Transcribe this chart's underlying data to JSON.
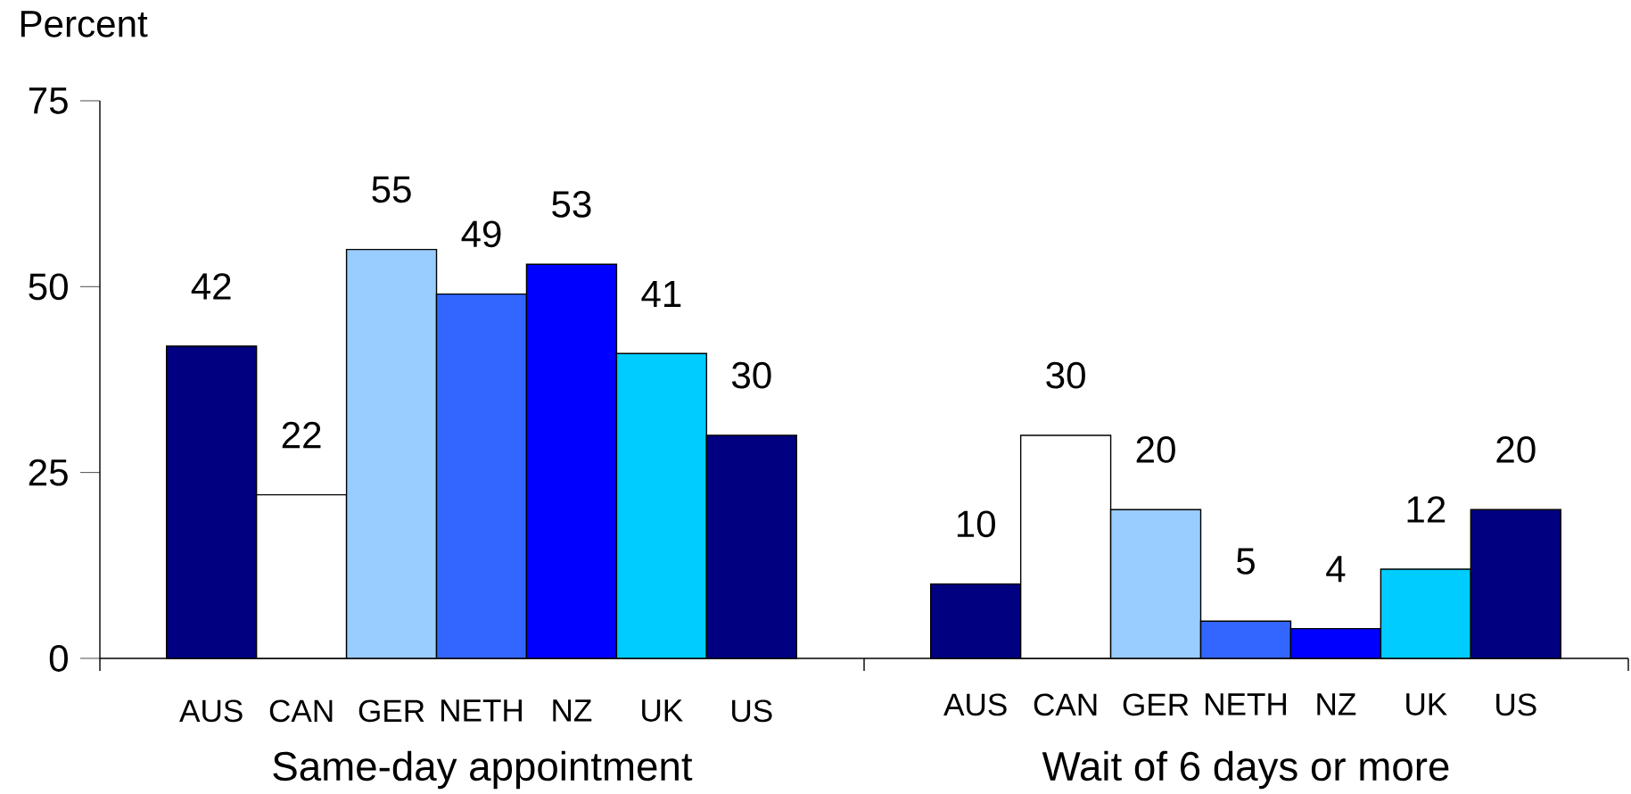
{
  "chart_data": [
    {
      "type": "bar",
      "ylabel": "Percent",
      "xlabel": "Same-day appointment",
      "categories": [
        "AUS",
        "CAN",
        "GER",
        "NETH",
        "NZ",
        "UK",
        "US"
      ],
      "values": [
        42,
        22,
        55,
        49,
        53,
        41,
        30
      ],
      "colors": [
        "#000080",
        "#ffffff",
        "#99ccff",
        "#3366ff",
        "#0000ff",
        "#00ccff",
        "#000080"
      ],
      "ylim": [
        0,
        75
      ],
      "yticks": [
        0,
        25,
        50,
        75
      ],
      "data_labels": true
    },
    {
      "type": "bar",
      "xlabel": "Wait of 6 days or more",
      "categories": [
        "AUS",
        "CAN",
        "GER",
        "NETH",
        "NZ",
        "UK",
        "US"
      ],
      "values": [
        10,
        30,
        20,
        5,
        4,
        12,
        20
      ],
      "colors": [
        "#000080",
        "#ffffff",
        "#99ccff",
        "#3366ff",
        "#0000ff",
        "#00ccff",
        "#000080"
      ],
      "ylim": [
        0,
        75
      ],
      "yticks": [
        0,
        25,
        50,
        75
      ],
      "data_labels": true,
      "tick_labels": "x"
    }
  ]
}
